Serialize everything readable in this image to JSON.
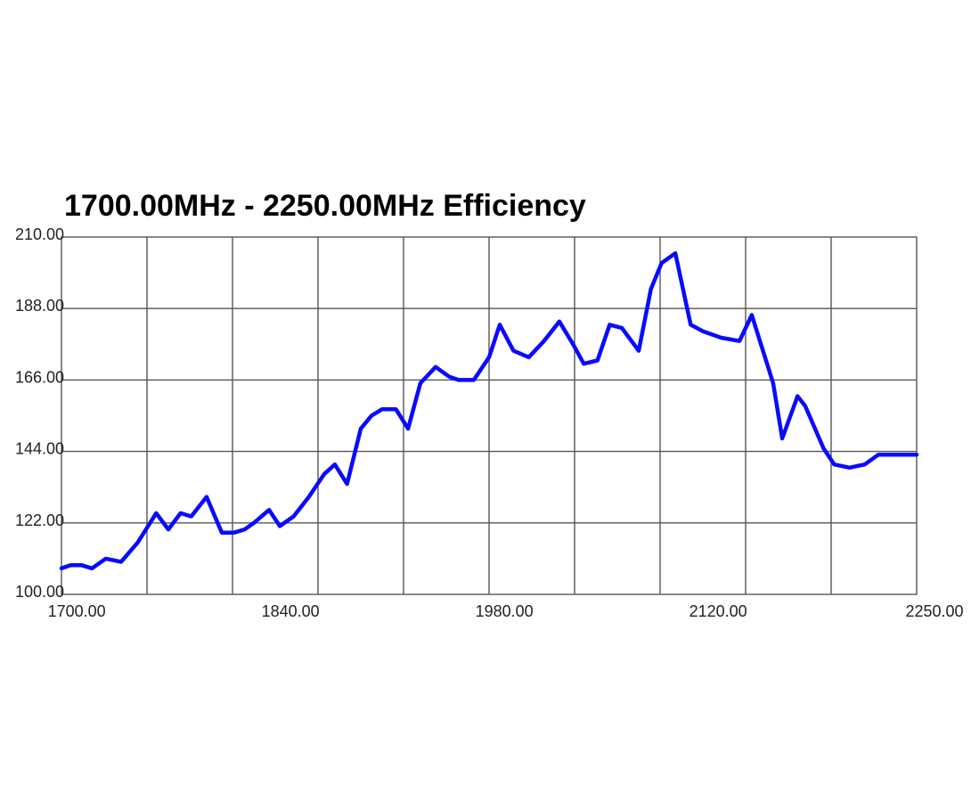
{
  "chart_data": {
    "type": "line",
    "title": "1700.00MHz - 2250.00MHz Efficiency",
    "xlabel": "",
    "ylabel": "",
    "xlim": [
      1690,
      2250
    ],
    "ylim": [
      100,
      210
    ],
    "grid": true,
    "x_ticks": [
      {
        "value": 1700,
        "label": "1700.00"
      },
      {
        "value": 1840,
        "label": "1840.00"
      },
      {
        "value": 1980,
        "label": "1980.00"
      },
      {
        "value": 2120,
        "label": "2120.00"
      },
      {
        "value": 2250,
        "label": "2250.00"
      }
    ],
    "x_gridlines": [
      1746,
      1802,
      1858,
      1914,
      1970,
      2026,
      2082,
      2138,
      2194
    ],
    "y_ticks": [
      {
        "value": 210,
        "label": "210.00"
      },
      {
        "value": 188,
        "label": "188.00"
      },
      {
        "value": 166,
        "label": "166.00"
      },
      {
        "value": 144,
        "label": "144.00"
      },
      {
        "value": 122,
        "label": "122.00"
      },
      {
        "value": 100,
        "label": "100.00"
      }
    ],
    "series": [
      {
        "color": "#0a0aff",
        "x": [
          1690,
          1696,
          1703,
          1710,
          1719,
          1729,
          1740,
          1752,
          1760,
          1768,
          1775,
          1785,
          1795,
          1803,
          1810,
          1816,
          1826,
          1833,
          1842,
          1852,
          1862,
          1869,
          1877,
          1886,
          1893,
          1900,
          1909,
          1917,
          1925,
          1935,
          1944,
          1950,
          1960,
          1970,
          1977,
          1986,
          1996,
          2006,
          2016,
          2025,
          2032,
          2041,
          2049,
          2057,
          2068,
          2076,
          2083,
          2092,
          2102,
          2110,
          2122,
          2134,
          2142,
          2156,
          2162,
          2172,
          2177,
          2189,
          2196,
          2206,
          2216,
          2225,
          2235,
          2244,
          2250
        ],
        "y": [
          108,
          109,
          109,
          108,
          111,
          110,
          116,
          125,
          120,
          125,
          124,
          130,
          119,
          119,
          120,
          122,
          126,
          121,
          124,
          130,
          137,
          140,
          134,
          151,
          155,
          157,
          157,
          151,
          165,
          170,
          167,
          166,
          166,
          173,
          183,
          175,
          173,
          178,
          184,
          177,
          171,
          172,
          183,
          182,
          175,
          194,
          202,
          205,
          183,
          181,
          179,
          178,
          186,
          165,
          148,
          161,
          158,
          145,
          140,
          139,
          140,
          143,
          143,
          143,
          143
        ]
      }
    ]
  }
}
